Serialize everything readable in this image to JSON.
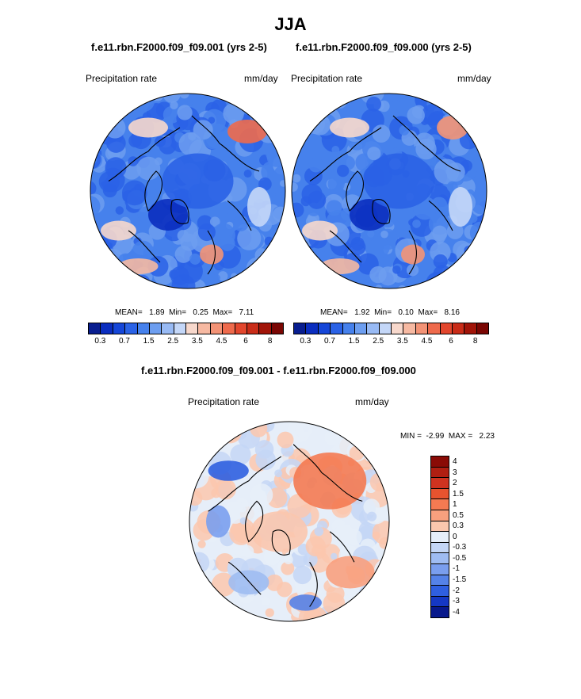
{
  "page": {
    "title": "JJA"
  },
  "chart_data": [
    {
      "type": "heatmap",
      "projection": "polar-stereographic",
      "title": "f.e11.rbn.F2000.f09_f09.001 (yrs 2-5)",
      "left_label": "Precipitation rate",
      "right_label": "mm/day",
      "stats": {
        "mean_label": "MEAN=",
        "mean": "1.89",
        "min_label": "Min=",
        "min": "0.25",
        "max_label": "Max=",
        "max": "7.11"
      },
      "colorbar": {
        "orientation": "horizontal",
        "tick_labels": [
          "0.3",
          "0.7",
          "1.5",
          "2.5",
          "3.5",
          "4.5",
          "6",
          "8"
        ],
        "levels": [
          0.2,
          0.3,
          0.5,
          0.7,
          1,
          1.5,
          2,
          2.5,
          3,
          3.5,
          4,
          4.5,
          5,
          6,
          7,
          8
        ]
      }
    },
    {
      "type": "heatmap",
      "projection": "polar-stereographic",
      "title": "f.e11.rbn.F2000.f09_f09.000 (yrs 2-5)",
      "left_label": "Precipitation rate",
      "right_label": "mm/day",
      "stats": {
        "mean_label": "MEAN=",
        "mean": "1.92",
        "min_label": "Min=",
        "min": "0.10",
        "max_label": "Max=",
        "max": "8.16"
      },
      "colorbar": {
        "orientation": "horizontal",
        "tick_labels": [
          "0.3",
          "0.7",
          "1.5",
          "2.5",
          "3.5",
          "4.5",
          "6",
          "8"
        ],
        "levels": [
          0.2,
          0.3,
          0.5,
          0.7,
          1,
          1.5,
          2,
          2.5,
          3,
          3.5,
          4,
          4.5,
          5,
          6,
          7,
          8
        ]
      }
    },
    {
      "type": "heatmap",
      "projection": "polar-stereographic",
      "title": "f.e11.rbn.F2000.f09_f09.001 - f.e11.rbn.F2000.f09_f09.000",
      "left_label": "Precipitation rate",
      "right_label": "mm/day",
      "stats": {
        "min_label": "MIN =",
        "min": "-2.99",
        "max_label": "MAX =",
        "max": "2.23"
      },
      "colorbar": {
        "orientation": "vertical",
        "tick_labels": [
          "4",
          "3",
          "2",
          "1.5",
          "1",
          "0.5",
          "0.3",
          "0",
          "-0.3",
          "-0.5",
          "-1",
          "-1.5",
          "-2",
          "-3",
          "-4"
        ]
      }
    }
  ],
  "colors": {
    "abs_scale": [
      "#081d8f",
      "#0a2dbf",
      "#1546d8",
      "#2a62e6",
      "#4681ec",
      "#6d9ef0",
      "#98baf4",
      "#c4d7f8",
      "#f7d8cc",
      "#f6b9a2",
      "#f39376",
      "#ee6a4c",
      "#e2462d",
      "#c92c18",
      "#a11408",
      "#7a0603"
    ],
    "diff_scale": [
      "#8a0b06",
      "#b01f12",
      "#cf3320",
      "#e8532f",
      "#f47a52",
      "#f8a07e",
      "#fbc7ae",
      "#e6eef9",
      "#c4d6f6",
      "#9fbcf2",
      "#7a9eee",
      "#5582e8",
      "#2f5fe0",
      "#1538c4",
      "#08198c"
    ],
    "coastline": "#000000"
  }
}
